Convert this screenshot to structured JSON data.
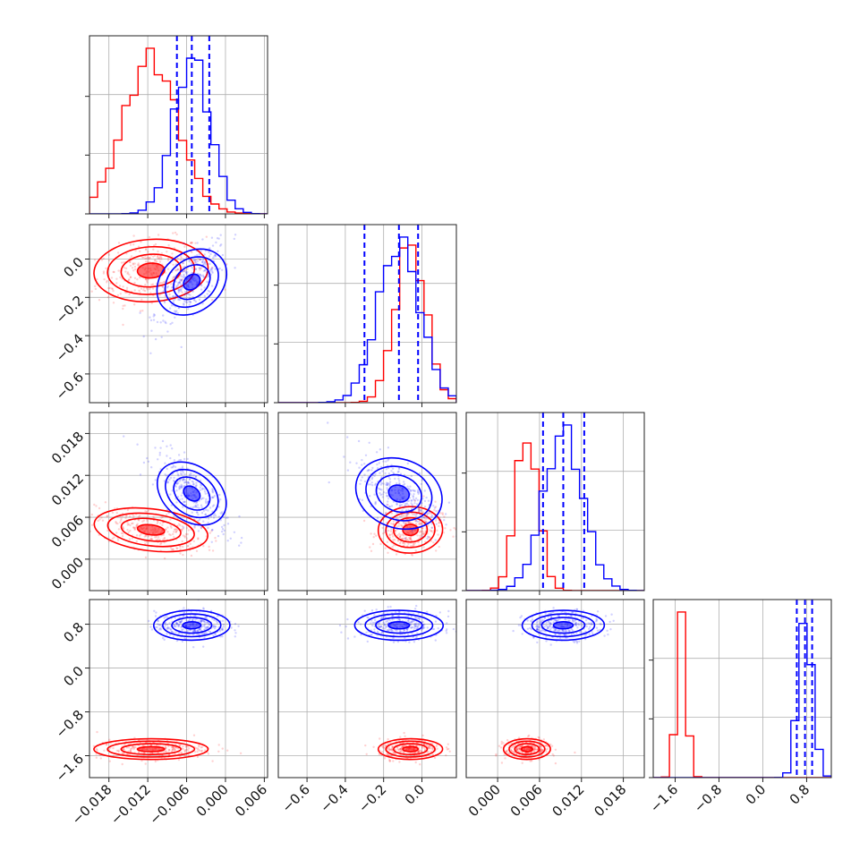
{
  "chart_data": {
    "type": "corner",
    "colors": {
      "red": "#ff0000",
      "blue": "#0000ff"
    },
    "parameters": [
      {
        "range": [
          -0.021,
          0.0065
        ],
        "ticks": [
          -0.018,
          -0.012,
          -0.006,
          0.0,
          0.006
        ],
        "tick_labels": [
          "−0.018",
          "−0.012",
          "−0.006",
          "0.000",
          "0.006"
        ]
      },
      {
        "range": [
          -0.75,
          0.18
        ],
        "ticks": [
          -0.6,
          -0.4,
          -0.2,
          0.0
        ],
        "tick_labels": [
          "−0.6",
          "−0.4",
          "−0.2",
          "0.0"
        ]
      },
      {
        "range": [
          -0.0045,
          0.021
        ],
        "ticks": [
          0.0,
          0.006,
          0.012,
          0.018
        ],
        "tick_labels": [
          "0.000",
          "0.006",
          "0.012",
          "0.018"
        ]
      },
      {
        "range": [
          -2.0,
          1.25
        ],
        "ticks": [
          -1.6,
          -0.8,
          0.0,
          0.8
        ],
        "tick_labels": [
          "−1.6",
          "−0.8",
          "0.0",
          "0.8"
        ]
      }
    ],
    "series": [
      {
        "color": "red",
        "means": [
          -0.0115,
          -0.06,
          0.0042,
          -1.48
        ],
        "stds": [
          0.0042,
          0.08,
          0.0016,
          0.09
        ]
      },
      {
        "color": "blue",
        "means": [
          -0.0052,
          -0.12,
          0.0094,
          0.78
        ],
        "stds": [
          0.0028,
          0.11,
          0.0028,
          0.13
        ]
      }
    ],
    "quantiles": [
      {
        "values": [
          -0.0075,
          -0.0052,
          -0.0025
        ]
      },
      {
        "values": [
          -0.3,
          -0.12,
          -0.02
        ]
      },
      {
        "values": [
          0.0065,
          0.0094,
          0.0124
        ]
      },
      {
        "values": [
          0.62,
          0.77,
          0.9
        ]
      }
    ],
    "grid": true
  }
}
